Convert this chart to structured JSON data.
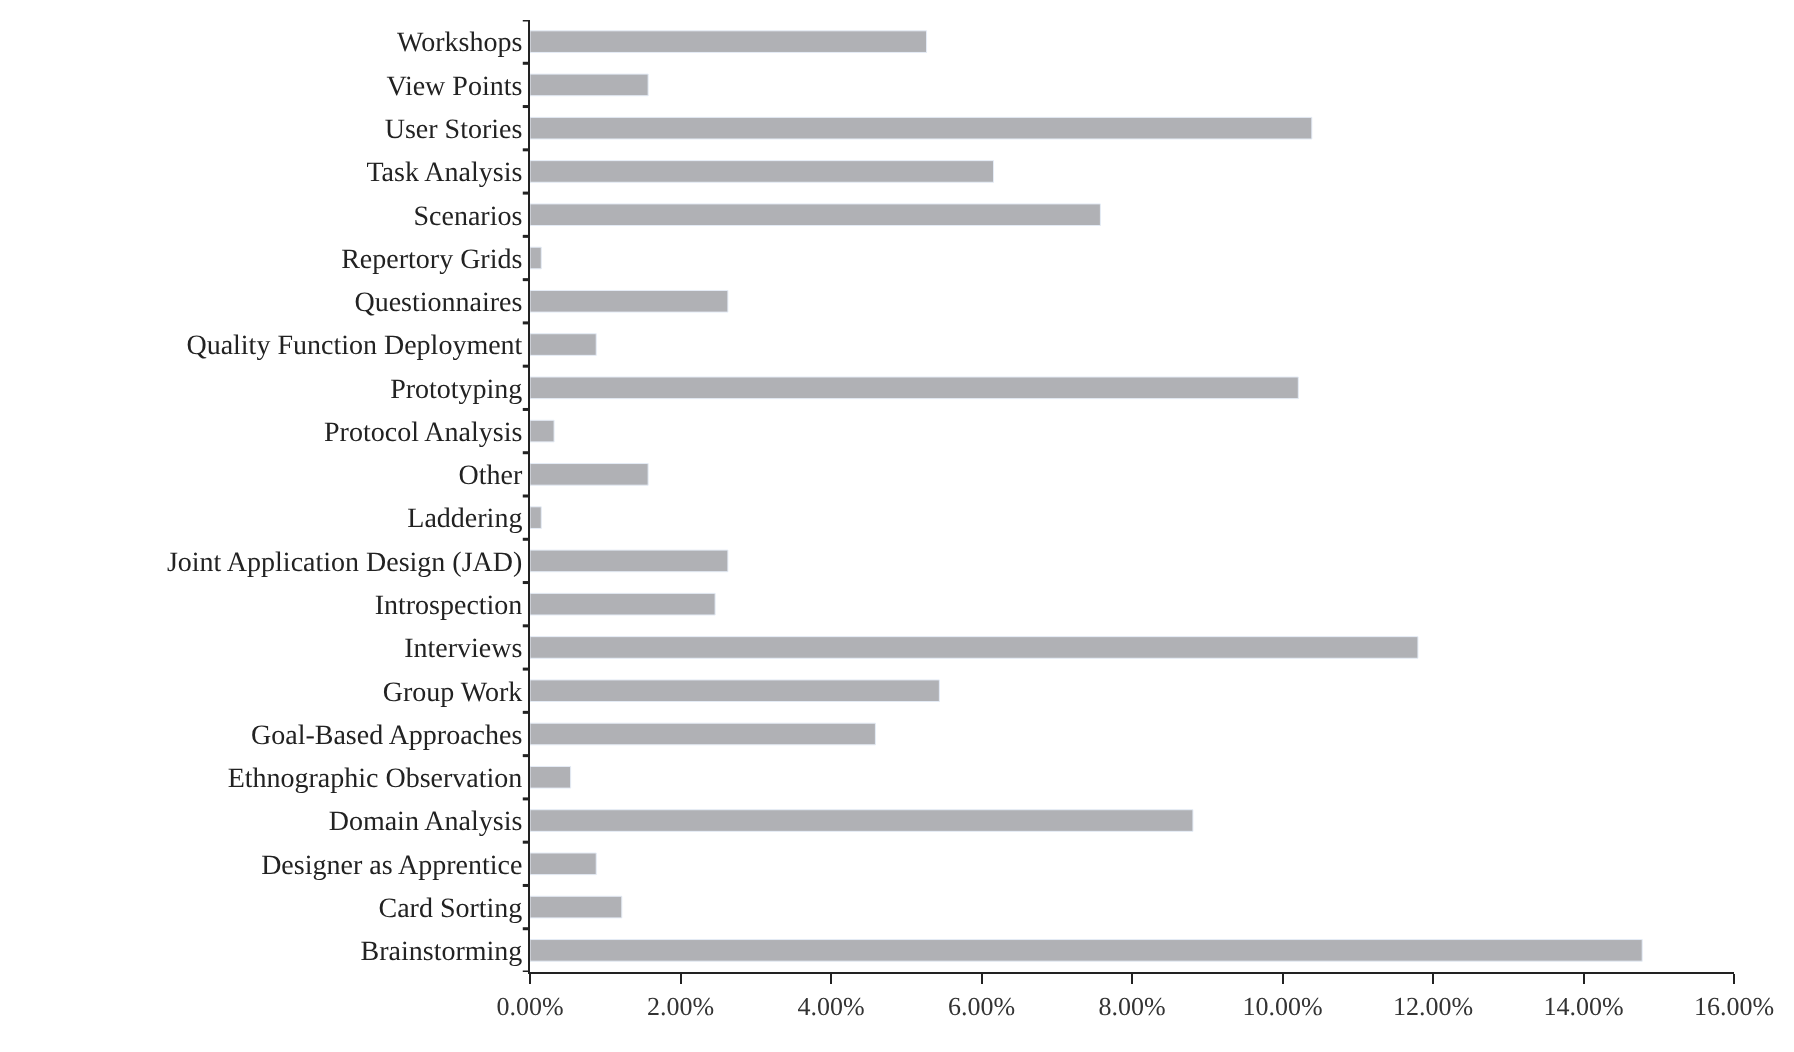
{
  "chart_data": {
    "type": "bar",
    "orientation": "horizontal",
    "categories": [
      "Workshops",
      "View Points",
      "User Stories",
      "Task Analysis",
      "Scenarios",
      "Repertory Grids",
      "Questionnaires",
      "Quality Function Deployment",
      "Prototyping",
      "Protocol Analysis",
      "Other",
      "Laddering",
      "Joint Application Design (JAD)",
      "Introspection",
      "Interviews",
      "Group Work",
      "Goal-Based Approaches",
      "Ethnographic Observation",
      "Domain Analysis",
      "Designer as Apprentice",
      "Card Sorting",
      "Brainstorming"
    ],
    "values": [
      5.27,
      1.57,
      10.39,
      6.16,
      7.58,
      0.15,
      2.63,
      0.88,
      10.21,
      0.32,
      1.57,
      0.15,
      2.63,
      2.46,
      11.8,
      5.44,
      4.59,
      0.54,
      8.81,
      0.88,
      1.22,
      14.78
    ],
    "color": "#b0b1b5",
    "xlim": [
      0,
      16
    ],
    "xticks": [
      {
        "value": 0,
        "label": "0.00%"
      },
      {
        "value": 2,
        "label": "2.00%"
      },
      {
        "value": 4,
        "label": "4.00%"
      },
      {
        "value": 6,
        "label": "6.00%"
      },
      {
        "value": 8,
        "label": "8.00%"
      },
      {
        "value": 10,
        "label": "10.00%"
      },
      {
        "value": 12,
        "label": "12.00%"
      },
      {
        "value": 14,
        "label": "14.00%"
      },
      {
        "value": 16,
        "label": "16.00%"
      }
    ],
    "legend": false
  }
}
